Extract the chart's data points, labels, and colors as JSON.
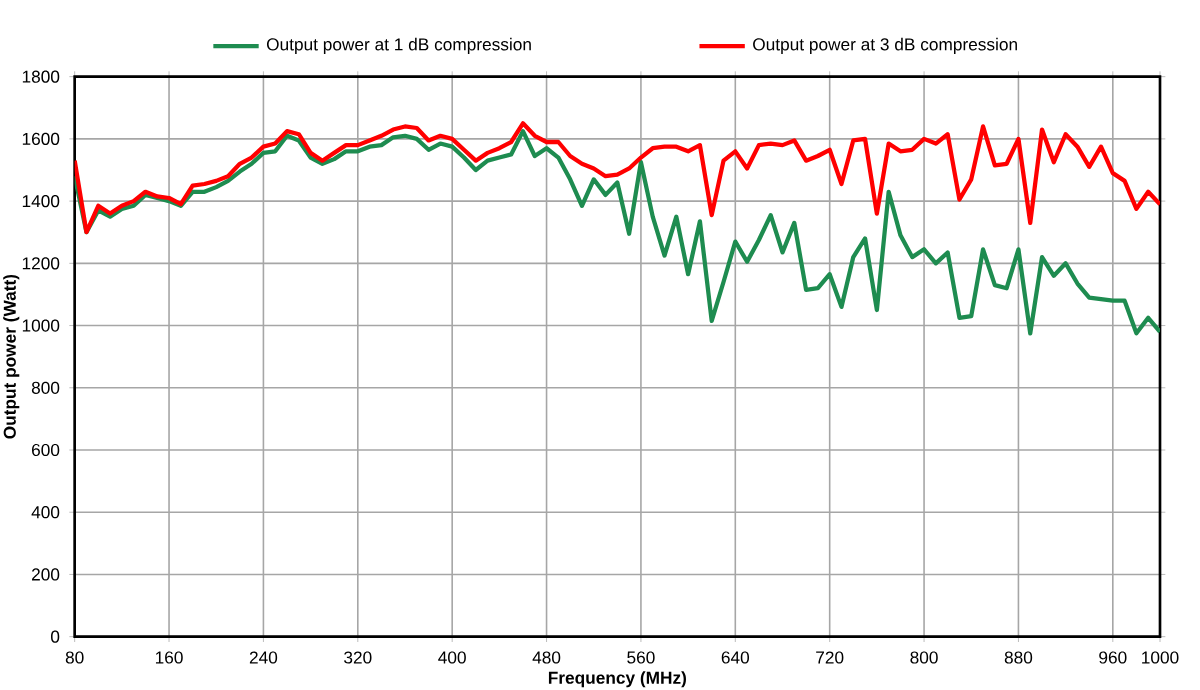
{
  "chart_data": {
    "type": "line",
    "xlabel": "Frequency (MHz)",
    "ylabel": "Output power (Watt)",
    "x": [
      80,
      90,
      100,
      110,
      120,
      130,
      140,
      150,
      160,
      170,
      180,
      190,
      200,
      210,
      220,
      230,
      240,
      250,
      260,
      270,
      280,
      290,
      300,
      310,
      320,
      330,
      340,
      350,
      360,
      370,
      380,
      390,
      400,
      410,
      420,
      430,
      440,
      450,
      460,
      470,
      480,
      490,
      500,
      510,
      520,
      530,
      540,
      550,
      560,
      570,
      580,
      590,
      600,
      610,
      620,
      630,
      640,
      650,
      660,
      670,
      680,
      690,
      700,
      710,
      720,
      730,
      740,
      750,
      760,
      770,
      780,
      790,
      800,
      810,
      820,
      830,
      840,
      850,
      860,
      870,
      880,
      890,
      900,
      910,
      920,
      930,
      940,
      950,
      960,
      970,
      980,
      990,
      1000
    ],
    "series": [
      {
        "name": "Output power at 1 dB compression",
        "color": "#1e8c50",
        "values": [
          1480,
          1300,
          1370,
          1350,
          1375,
          1385,
          1420,
          1410,
          1400,
          1385,
          1430,
          1430,
          1445,
          1465,
          1495,
          1520,
          1555,
          1560,
          1610,
          1595,
          1540,
          1520,
          1535,
          1560,
          1560,
          1575,
          1580,
          1605,
          1610,
          1600,
          1565,
          1585,
          1575,
          1540,
          1500,
          1530,
          1540,
          1550,
          1625,
          1545,
          1570,
          1540,
          1470,
          1385,
          1470,
          1420,
          1460,
          1295,
          1525,
          1350,
          1225,
          1350,
          1165,
          1335,
          1015,
          1140,
          1270,
          1205,
          1275,
          1355,
          1235,
          1330,
          1115,
          1120,
          1165,
          1060,
          1220,
          1280,
          1050,
          1430,
          1290,
          1220,
          1245,
          1200,
          1235,
          1025,
          1030,
          1245,
          1130,
          1120,
          1245,
          975,
          1220,
          1160,
          1200,
          1135,
          1090,
          1085,
          1080,
          1080,
          975,
          1025,
          980
        ]
      },
      {
        "name": "Output power at 3 dB compression",
        "color": "#ff0000",
        "values": [
          1530,
          1300,
          1385,
          1360,
          1385,
          1400,
          1430,
          1415,
          1410,
          1390,
          1450,
          1455,
          1465,
          1480,
          1520,
          1540,
          1575,
          1585,
          1625,
          1615,
          1555,
          1530,
          1555,
          1580,
          1580,
          1595,
          1610,
          1630,
          1640,
          1635,
          1595,
          1610,
          1600,
          1565,
          1530,
          1555,
          1570,
          1590,
          1650,
          1610,
          1590,
          1590,
          1545,
          1520,
          1505,
          1480,
          1485,
          1505,
          1540,
          1570,
          1575,
          1575,
          1560,
          1580,
          1355,
          1530,
          1560,
          1505,
          1580,
          1585,
          1580,
          1595,
          1530,
          1545,
          1565,
          1455,
          1595,
          1600,
          1360,
          1585,
          1560,
          1565,
          1600,
          1585,
          1615,
          1405,
          1470,
          1640,
          1515,
          1520,
          1600,
          1330,
          1630,
          1525,
          1615,
          1575,
          1510,
          1575,
          1490,
          1465,
          1375,
          1430,
          1390
        ]
      }
    ],
    "xlim": [
      80,
      1000
    ],
    "xticks": [
      80,
      160,
      240,
      320,
      400,
      480,
      560,
      640,
      720,
      800,
      880,
      960,
      1000
    ],
    "ylim": [
      0,
      1800
    ],
    "yticks": [
      0,
      200,
      400,
      600,
      800,
      1000,
      1200,
      1400,
      1600,
      1800
    ],
    "grid": true,
    "legend": "top",
    "marker": "none",
    "line_style": "solid"
  }
}
